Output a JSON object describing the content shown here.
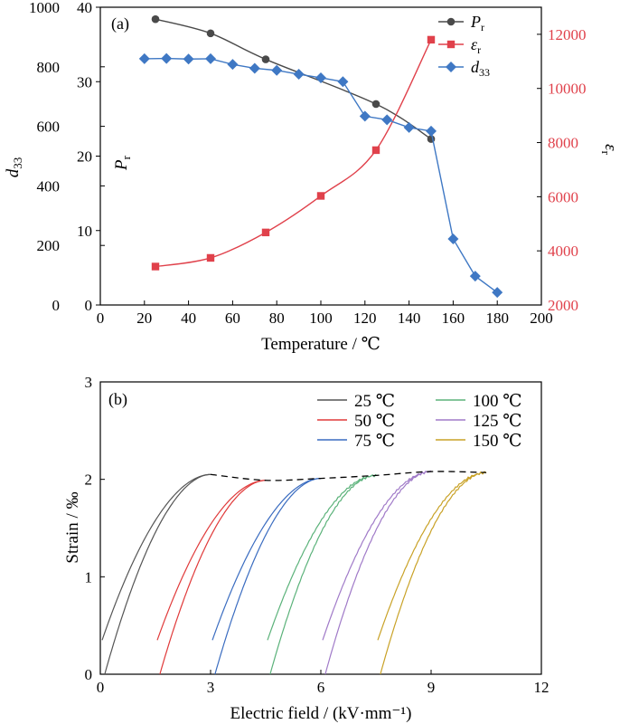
{
  "chart_data": [
    {
      "type": "line",
      "panel_label": "(a)",
      "xlabel": "Temperature / ℃",
      "xlim": [
        0,
        200
      ],
      "x_ticks": [
        "0",
        "20",
        "40",
        "60",
        "80",
        "100",
        "120",
        "140",
        "160",
        "180",
        "200"
      ],
      "axes": {
        "left_outer": {
          "label_main": "d",
          "label_sub": "33",
          "lim": [
            0,
            1000
          ],
          "ticks": [
            "0",
            "200",
            "400",
            "600",
            "800",
            "1000"
          ]
        },
        "left_inner": {
          "label_main": "P",
          "label_sub": "r",
          "lim": [
            0,
            40
          ],
          "ticks": [
            "0",
            "10",
            "20",
            "30",
            "40"
          ]
        },
        "right": {
          "label_main": "ε",
          "label_sub": "r",
          "lim": [
            2000,
            13000
          ],
          "ticks": [
            "2000",
            "4000",
            "6000",
            "8000",
            "10000",
            "12000"
          ],
          "color": "#e0414b"
        }
      },
      "series": [
        {
          "legend_main": "P",
          "legend_sub": "r",
          "axis": "left_inner",
          "marker": "circle",
          "color": "#4a4a4a",
          "x": [
            25,
            50,
            75,
            125,
            150
          ],
          "y": [
            38.4,
            36.5,
            33.0,
            27.0,
            22.3
          ]
        },
        {
          "legend_main": "ε",
          "legend_sub": "r",
          "axis": "right",
          "marker": "square",
          "color": "#e0414b",
          "x": [
            25,
            50,
            75,
            100,
            125,
            150
          ],
          "y": [
            3420,
            3740,
            4680,
            6030,
            7720,
            11800
          ]
        },
        {
          "legend_main": "d",
          "legend_sub": "33",
          "axis": "left_outer",
          "marker": "diamond",
          "color": "#3f78c4",
          "x": [
            20,
            30,
            40,
            50,
            60,
            70,
            80,
            90,
            100,
            110,
            120,
            130,
            140,
            150,
            160,
            170,
            180
          ],
          "y": [
            827,
            828,
            826,
            827,
            808,
            795,
            788,
            775,
            763,
            750,
            634,
            622,
            596,
            584,
            222,
            97,
            42
          ]
        }
      ]
    },
    {
      "type": "line",
      "panel_label": "(b)",
      "xlabel": "Electric field / (kV·mm⁻¹)",
      "ylabel": "Strain / ‰",
      "xlim": [
        0,
        12
      ],
      "ylim": [
        0,
        3
      ],
      "x_ticks": [
        "0",
        "3",
        "6",
        "9",
        "12"
      ],
      "y_ticks": [
        "0",
        "1",
        "2",
        "3"
      ],
      "legend_position": "top-right",
      "series": [
        {
          "name": "25 ℃",
          "color": "#555555",
          "start": 0.0,
          "end": 3.0,
          "max_strain": 2.05
        },
        {
          "name": "50 ℃",
          "color": "#e03a3a",
          "start": 1.5,
          "end": 4.5,
          "max_strain": 1.99
        },
        {
          "name": "75 ℃",
          "color": "#3a6cc0",
          "start": 3.0,
          "end": 6.0,
          "max_strain": 2.01
        },
        {
          "name": "100 ℃",
          "color": "#5bb27a",
          "start": 4.5,
          "end": 7.5,
          "max_strain": 2.04
        },
        {
          "name": "125 ℃",
          "color": "#a07ac8",
          "start": 6.0,
          "end": 9.0,
          "max_strain": 2.08
        },
        {
          "name": "150 ℃",
          "color": "#c9a227",
          "start": 7.5,
          "end": 10.5,
          "max_strain": 2.07
        }
      ],
      "max_strain_envelope": {
        "style": "dashed",
        "x": [
          3.0,
          4.5,
          6.0,
          7.5,
          9.0,
          10.5
        ],
        "y": [
          2.05,
          1.99,
          2.01,
          2.04,
          2.08,
          2.07
        ]
      }
    }
  ]
}
